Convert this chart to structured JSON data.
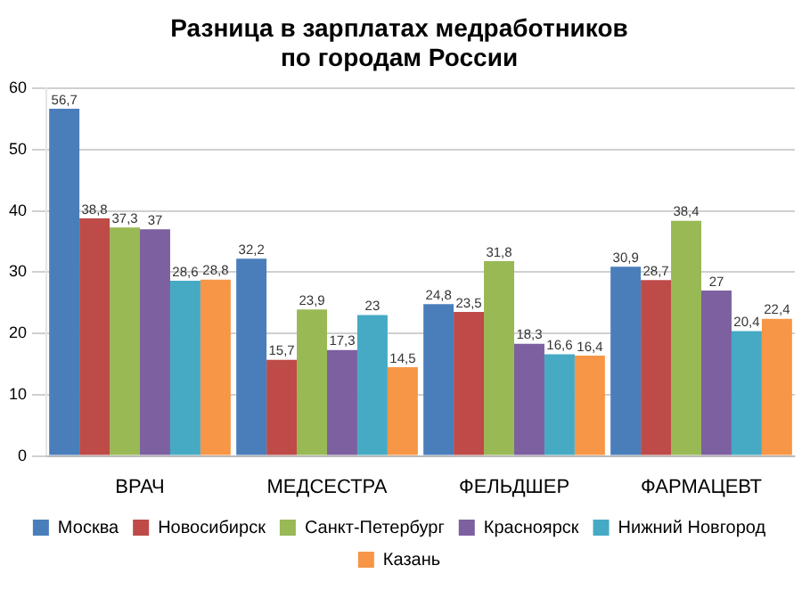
{
  "chart_data": {
    "type": "bar",
    "title": "Разница в зарплатах медработников\nпо городам России",
    "categories": [
      "ВРАЧ",
      "МЕДСЕСТРА",
      "ФЕЛЬДШЕР",
      "ФАРМАЦЕВТ"
    ],
    "ylim": [
      0,
      60
    ],
    "yticks": [
      0,
      10,
      20,
      30,
      40,
      50,
      60
    ],
    "grid": "y",
    "legend": "bottom",
    "series": [
      {
        "name": "Москва",
        "color": "#4a7ebb",
        "values": [
          56.7,
          32.2,
          24.8,
          30.9
        ],
        "value_labels": [
          "56,7",
          "32,2",
          "24,8",
          "30,9"
        ]
      },
      {
        "name": "Новосибирск",
        "color": "#be4b48",
        "values": [
          38.8,
          15.7,
          23.5,
          28.7
        ],
        "value_labels": [
          "38,8",
          "15,7",
          "23,5",
          "28,7"
        ]
      },
      {
        "name": "Санкт-Петербург",
        "color": "#98b954",
        "values": [
          37.3,
          23.9,
          31.8,
          38.4
        ],
        "value_labels": [
          "37,3",
          "23,9",
          "31,8",
          "38,4"
        ]
      },
      {
        "name": "Красноярск",
        "color": "#7d60a0",
        "values": [
          37,
          17.3,
          18.3,
          27
        ],
        "value_labels": [
          "37",
          "17,3",
          "18,3",
          "27"
        ]
      },
      {
        "name": "Нижний Новгород",
        "color": "#46aac5",
        "values": [
          28.6,
          23,
          16.6,
          20.4
        ],
        "value_labels": [
          "28,6",
          "23",
          "16,6",
          "20,4"
        ]
      },
      {
        "name": "Казань",
        "color": "#f79646",
        "values": [
          28.8,
          14.5,
          16.4,
          22.4
        ],
        "value_labels": [
          "28,8",
          "14,5",
          "16,4",
          "22,4"
        ]
      }
    ]
  }
}
